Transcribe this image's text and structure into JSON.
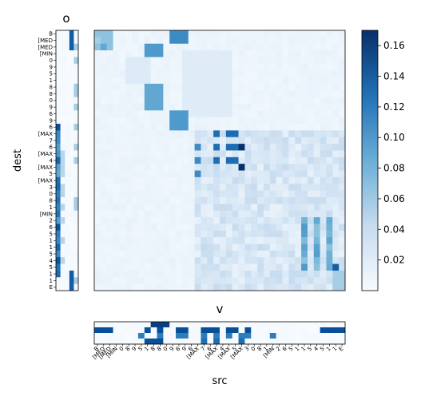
{
  "chart_data": {
    "type": "heatmap",
    "colormap": "Blues",
    "color_range": [
      0,
      0.17
    ],
    "panels": {
      "o_title": "o",
      "v_title": "v",
      "xlabel": "src",
      "ylabel": "dest"
    },
    "row_labels": [
      "B",
      "[MED",
      "[MED",
      "[MIN",
      "0",
      "9",
      "5",
      "1",
      "8",
      "8",
      "0",
      "9",
      "6",
      "9",
      "6",
      "[MAX",
      "7",
      "6",
      "[MAX",
      "4",
      "[MAX",
      "5",
      "[MAX",
      "3",
      "0",
      "8",
      "1",
      "[MIN",
      "2",
      "6",
      "5",
      "1",
      "1",
      "5",
      "4",
      "5",
      "1",
      "1",
      "E"
    ],
    "col_labels": [
      "B",
      "[MED",
      "[MED",
      "[MIN",
      "0",
      "8",
      "9",
      "5",
      "1",
      "8",
      "8",
      "0",
      "9",
      "6",
      "9",
      "6",
      "[MAX",
      "7",
      "6",
      "[MAX",
      "4",
      "[MAX",
      "5",
      "[MAX",
      "3",
      "0",
      "8",
      "1",
      "[MIN",
      "2",
      "6",
      "5",
      "1",
      "1",
      "5",
      "4",
      "5",
      "1",
      "1",
      "E"
    ],
    "colorbar": {
      "ticks": [
        0.02,
        0.04,
        0.06,
        0.08,
        0.1,
        0.12,
        0.14,
        0.16
      ],
      "tick_labels": [
        "0.02",
        "0.04",
        "0.06",
        "0.08",
        "0.10",
        "0.12",
        "0.14",
        "0.16"
      ]
    },
    "o_columns": 5,
    "v_rows": 4
  }
}
